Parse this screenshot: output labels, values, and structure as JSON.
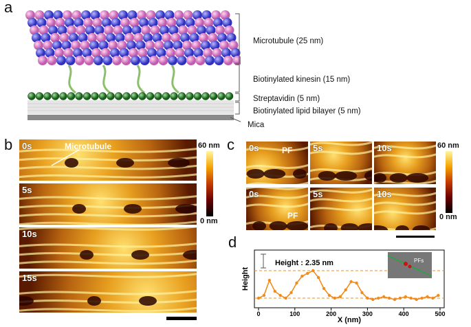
{
  "panels": {
    "a": "a",
    "b": "b",
    "c": "c",
    "d": "d"
  },
  "schematic": {
    "microtubule_label": "Microtubule (25 nm)",
    "kinesin_label": "Biotinylated kinesin (15 nm)",
    "streptavidin_label": "Streptavidin (5 nm)",
    "bilayer_label": "Biotinylated lipid bilayer (5 nm)",
    "mica_label": "Mica"
  },
  "panel_b": {
    "frames": [
      "0s",
      "5s",
      "10s",
      "15s"
    ],
    "microtubule_label": "Microtubule",
    "colorbar_top": "60 nm",
    "colorbar_bottom": "0 nm"
  },
  "panel_c": {
    "top_frames": [
      "0s",
      "5s",
      "10s"
    ],
    "bottom_frames": [
      "0s",
      "5s",
      "10s"
    ],
    "pf_label": "PF",
    "colorbar_top": "60 nm",
    "colorbar_bottom": "0 nm"
  },
  "panel_d": {
    "annotation": "Height : 2.35 nm",
    "inset_label": "PFs"
  },
  "chart_data": {
    "type": "line",
    "xlabel": "X (nm)",
    "ylabel": "Height",
    "xlim": [
      0,
      500
    ],
    "x_ticks": [
      0,
      100,
      200,
      300,
      400,
      500
    ],
    "series": [
      {
        "x": [
          0,
          15,
          30,
          45,
          60,
          75,
          90,
          105,
          120,
          135,
          150,
          165,
          180,
          195,
          210,
          225,
          240,
          255,
          270,
          285,
          300,
          315,
          330,
          345,
          360,
          375,
          390,
          405,
          420,
          435,
          450,
          465,
          480,
          495
        ],
        "y": [
          0.3,
          0.5,
          1.6,
          0.8,
          0.5,
          0.3,
          0.7,
          1.4,
          1.9,
          2.1,
          2.3,
          1.8,
          1.0,
          0.5,
          0.3,
          0.4,
          0.9,
          1.5,
          1.4,
          0.7,
          0.3,
          0.2,
          0.3,
          0.4,
          0.3,
          0.2,
          0.3,
          0.4,
          0.3,
          0.2,
          0.3,
          0.4,
          0.3,
          0.5
        ]
      }
    ],
    "color": "#f08c1e"
  }
}
